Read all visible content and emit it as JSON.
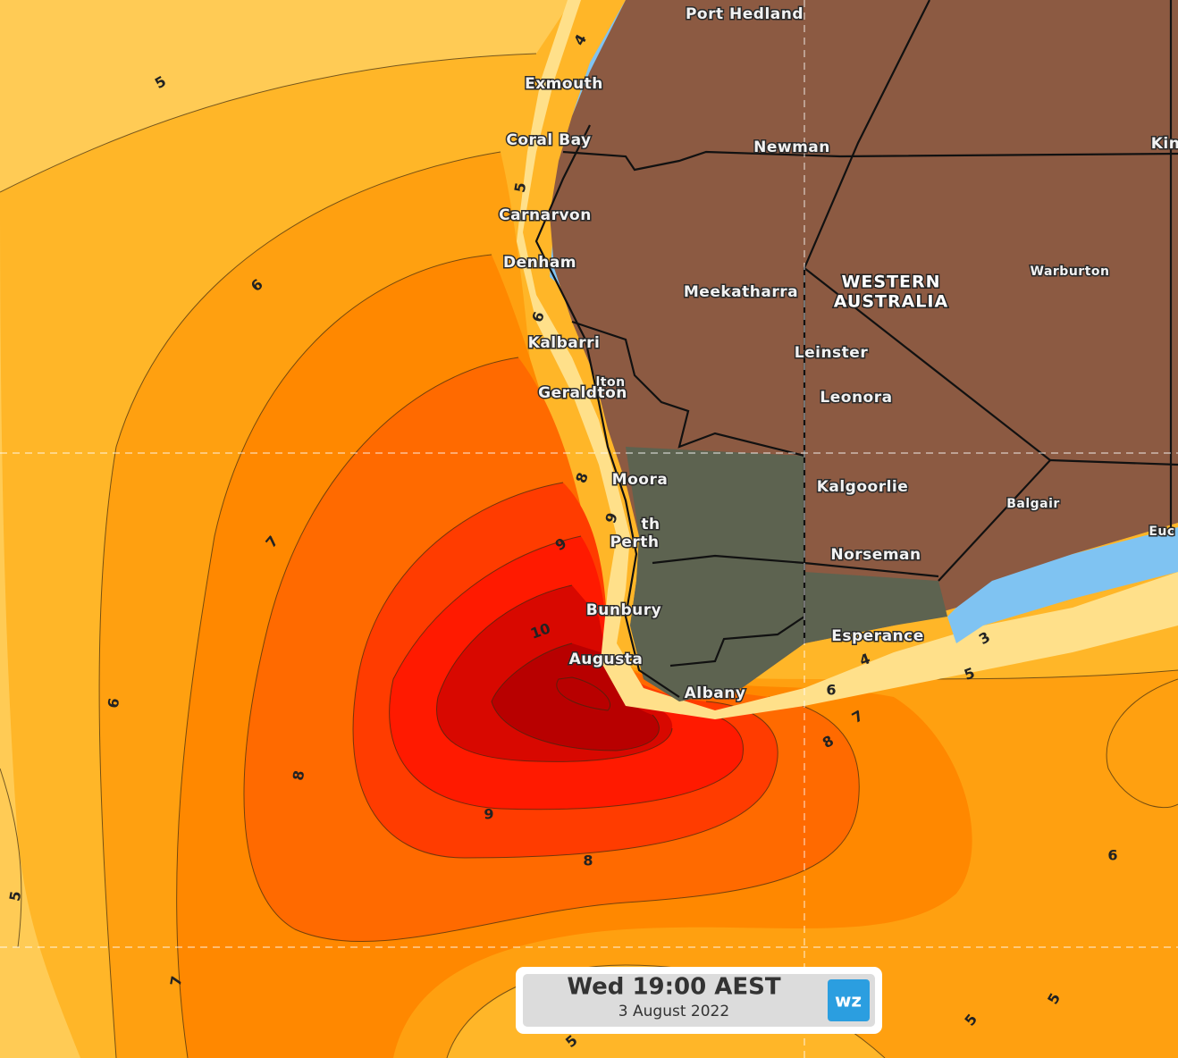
{
  "region": [
    "WESTERN",
    "AUSTRALIA"
  ],
  "places": [
    "Port Hedland",
    "Exmouth",
    "Coral Bay",
    "Newman",
    "Kin",
    "Carnarvon",
    "Denham",
    "Meekatharra",
    "Warburton",
    "Kalbarri",
    "lton",
    "Geraldton",
    "Leinster",
    "Leonora",
    "Moora",
    "th",
    "Perth",
    "Kalgoorlie",
    "Balgair",
    "Euc",
    "Norseman",
    "Bunbury",
    "Augusta",
    "Esperance",
    "Albany"
  ],
  "contour_labels": [
    5,
    4,
    5,
    6,
    6,
    7,
    9,
    8,
    9,
    10,
    9,
    8,
    8,
    5,
    7,
    6,
    7,
    8,
    4,
    3,
    5,
    6,
    6,
    5,
    5,
    5
  ],
  "timestamp": {
    "time": "Wed 19:00 AEST",
    "date": "3 August 2022"
  },
  "logo": "wz"
}
